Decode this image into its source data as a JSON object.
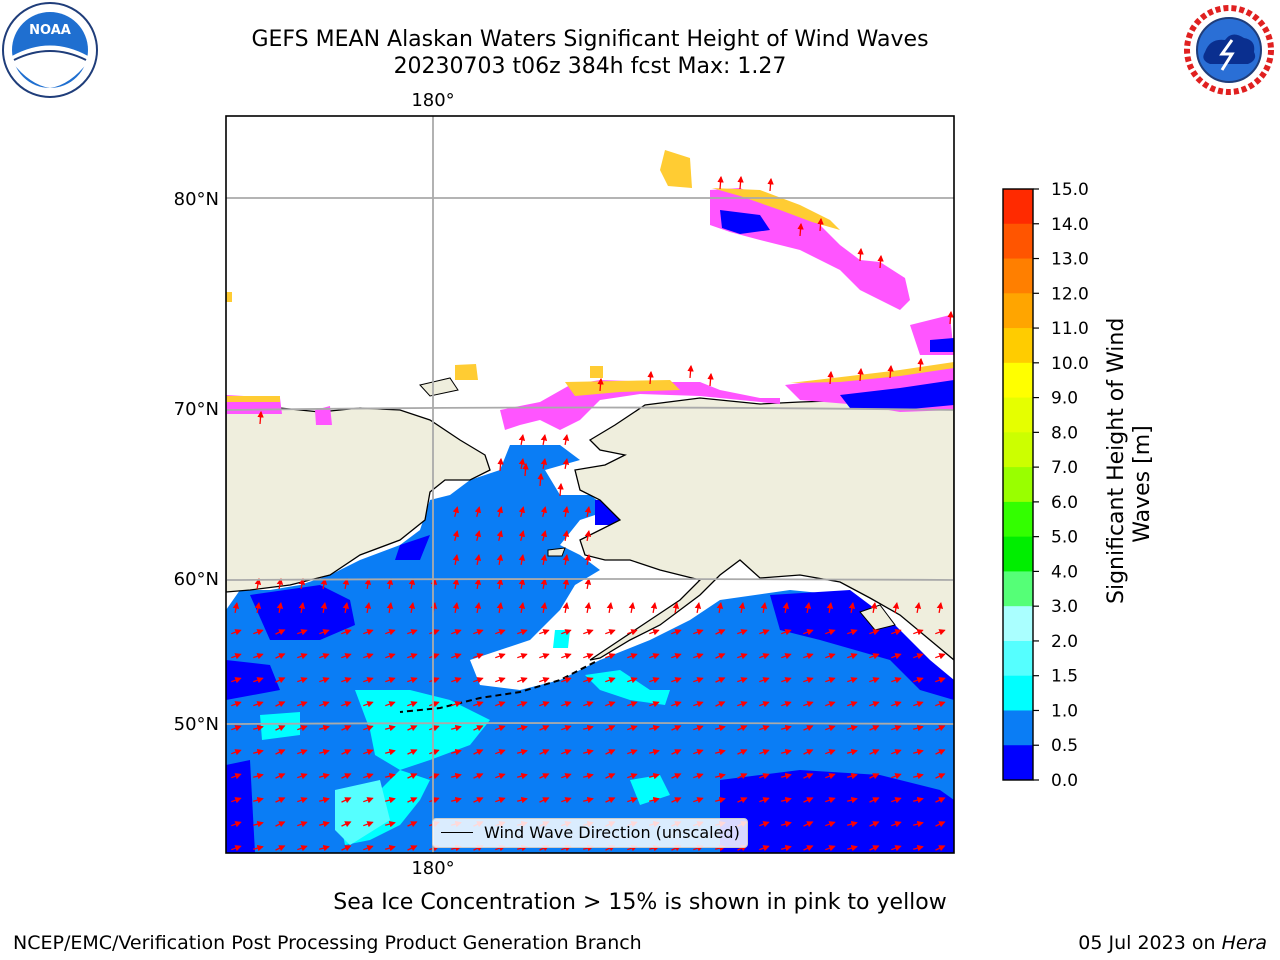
{
  "title_line1": "GEFS MEAN Alaskan Waters Significant Height of Wind Waves",
  "title_line2": "20230703 t06z 384h fcst   Max: 1.27",
  "map": {
    "lon_label_top": "180°",
    "lon_label_bottom": "180°",
    "lat_labels": [
      "80°N",
      "70°N",
      "60°N",
      "50°N"
    ],
    "legend_text": "Wind Wave Direction (unscaled)",
    "colors": {
      "land": "#efeedd",
      "ocean_low": "#0000ff",
      "ocean_mid": "#0a7df5",
      "ocean_high": "#00ffff",
      "arrow": "#ff0000",
      "ice_pink": "#ff55ff",
      "ice_yellow": "#ffcc33"
    }
  },
  "colorbar": {
    "label_line1": "Significant Height of Wind",
    "label_line2": "Waves [m]",
    "ticks": [
      "15.0",
      "14.0",
      "13.0",
      "12.0",
      "11.0",
      "10.0",
      "9.0",
      "8.0",
      "7.0",
      "6.0",
      "5.0",
      "4.0",
      "3.0",
      "2.0",
      "1.5",
      "1.0",
      "0.5",
      "0.0"
    ],
    "colors_top_to_bottom": [
      "#ff0000",
      "#ff2a00",
      "#ff5500",
      "#ff7f00",
      "#ffa500",
      "#ffcc00",
      "#ffff00",
      "#e5ff00",
      "#ccff00",
      "#99ff00",
      "#33ff00",
      "#00ee00",
      "#55ff77",
      "#aaffff",
      "#55ffff",
      "#00ffff",
      "#0a7df5",
      "#0000ff"
    ]
  },
  "caption": "Sea Ice Concentration > 15% is shown in pink to yellow",
  "footer_left": "NCEP/EMC/Verification Post Processing Product Generation Branch",
  "footer_right_prefix": "05 Jul 2023 on ",
  "footer_right_machine": "Hera"
}
